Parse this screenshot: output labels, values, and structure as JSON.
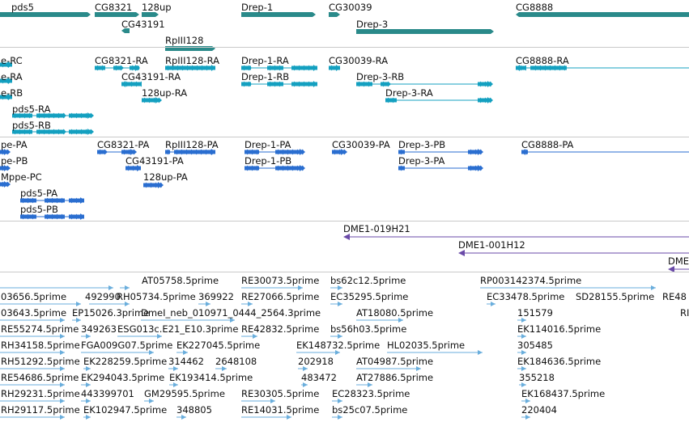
{
  "colors": {
    "gene": "#2a8a8a",
    "transcript_ra": "#14a0c0",
    "transcript_pa": "#2a6ed0",
    "clone": "#6a4aa8",
    "est": "#6aaedc",
    "separator": "#c9c9c9"
  },
  "tracks": {
    "genes": {
      "labels": [
        "pds5",
        "CG8321",
        "128up",
        "CG43191",
        "RpIII128",
        "Drep-1",
        "CG30039",
        "Drep-3",
        "CG8888"
      ]
    },
    "transcripts_ra": {
      "labels": [
        "e-RC",
        "e-RA",
        "e-RB",
        "pds5-RA",
        "pds5-RB",
        "CG8321-RA",
        "CG43191-RA",
        "128up-RA",
        "RpIII128-RA",
        "Drep-1-RA",
        "Drep-1-RB",
        "CG30039-RA",
        "Drep-3-RB",
        "Drep-3-RA",
        "CG8888-RA"
      ]
    },
    "transcripts_pa": {
      "labels": [
        "pe-PA",
        "pe-PB",
        "Mppe-PC",
        "pds5-PA",
        "pds5-PB",
        "CG8321-PA",
        "CG43191-PA",
        "128up-PA",
        "RpIII128-PA",
        "Drep-1-PA",
        "Drep-1-PB",
        "CG30039-PA",
        "Drep-3-PB",
        "Drep-3-PA",
        "CG8888-PA"
      ]
    },
    "clones": {
      "labels": [
        "DME1-019H21",
        "DME1-001H12",
        "DME"
      ]
    },
    "ests": {
      "labels": [
        "AT05758.5prime",
        "RE30073.5prime",
        "bs62c12.5prime",
        "RP003142374.5prime",
        "03656.5prime",
        "492990",
        "RH05734.5prime",
        "369922",
        "RE27066.5prime",
        "EC35295.5prime",
        "EC33478.5prime",
        "SD28155.5prime",
        "RE48",
        "03643.5prime",
        "EP15026.3prime",
        "DmeI_neb_010971_0444_2564.3prime",
        "AT18080.5prime",
        "151579",
        "RI",
        "RE55274.5prime",
        "349263",
        "ESG013c.E21_E10.3prime",
        "RE42832.5prime",
        "bs56h03.5prime",
        "EK114016.5prime",
        "RH34158.5prime",
        "FGA009G07.5prime",
        "EK227045.5prime",
        "EK148732.5prime",
        "HL02035.5prime",
        "305485",
        "RH51292.5prime",
        "EK228259.5prime",
        "314462",
        "2648108",
        "202918",
        "AT04987.5prime",
        "EK184636.5prime",
        "RE54686.5prime",
        "EK294043.5prime",
        "EK193414.5prime",
        "483472",
        "AT27886.5prime",
        "355218",
        "RH29231.5prime",
        "443399701",
        "GM29595.5prime",
        "RE30305.5prime",
        "EC28323.5prime",
        "EK168437.5prime",
        "RH29117.5prime",
        "EK102947.5prime",
        "348805",
        "RE14031.5prime",
        "bs25c07.5prime",
        "220404"
      ]
    }
  }
}
